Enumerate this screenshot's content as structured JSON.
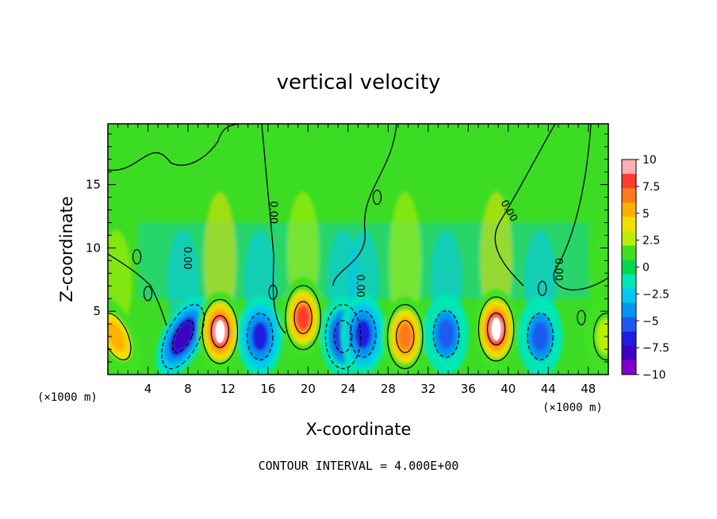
{
  "chart_data": {
    "type": "heatmap",
    "title": "vertical velocity",
    "xlabel": "X-coordinate",
    "ylabel": "Z-coordinate",
    "x_unit": "(×1000 m)",
    "x_unit_right": "(×1000 m)",
    "xlim": [
      0,
      50
    ],
    "ylim": [
      0,
      19.8
    ],
    "x_ticks": [
      4,
      8,
      12,
      16,
      20,
      24,
      28,
      32,
      36,
      40,
      44,
      48
    ],
    "y_ticks": [
      5,
      10,
      15
    ],
    "footer": "CONTOUR INTERVAL = 4.000E+00",
    "contour_labels": [
      "0.00",
      "0.00",
      "0.00",
      "0.00",
      "0.00"
    ],
    "colorbar": {
      "range": [
        -10,
        10
      ],
      "ticks": [
        "10",
        "7.5",
        "5",
        "2.5",
        "0",
        "−2.5",
        "−5",
        "−7.5",
        "−10"
      ],
      "colors": [
        "#ffb0b0",
        "#ff3c2e",
        "#ff7a1a",
        "#ffb000",
        "#f0e000",
        "#b8f000",
        "#40e020",
        "#00d850",
        "#00e6b4",
        "#00c8f0",
        "#0096f0",
        "#1e5af0",
        "#1e1ee0",
        "#3c00c0",
        "#8000c8"
      ]
    },
    "features": [
      {
        "x": 0.8,
        "z": 3.0,
        "w": 0.4,
        "value": 6
      },
      {
        "x": 7.5,
        "z": 3.0,
        "w": -0.45,
        "value": -8
      },
      {
        "x": 11.2,
        "z": 3.4,
        "w": 0,
        "value": 10
      },
      {
        "x": 15.2,
        "z": 3.0,
        "w": 0,
        "value": -6
      },
      {
        "x": 19.5,
        "z": 4.5,
        "w": 0,
        "value": 8
      },
      {
        "x": 23.5,
        "z": 3.0,
        "w": 0,
        "value": -7
      },
      {
        "x": 25.5,
        "z": 3.2,
        "w": 0,
        "value": -6
      },
      {
        "x": 29.7,
        "z": 3.0,
        "w": 0,
        "value": 7
      },
      {
        "x": 33.8,
        "z": 3.2,
        "w": 0,
        "value": -5
      },
      {
        "x": 38.8,
        "z": 3.6,
        "w": 0,
        "value": 10
      },
      {
        "x": 43.2,
        "z": 3.0,
        "w": 0,
        "value": -5
      },
      {
        "x": 49.8,
        "z": 3.0,
        "w": 0,
        "value": 3
      }
    ]
  }
}
